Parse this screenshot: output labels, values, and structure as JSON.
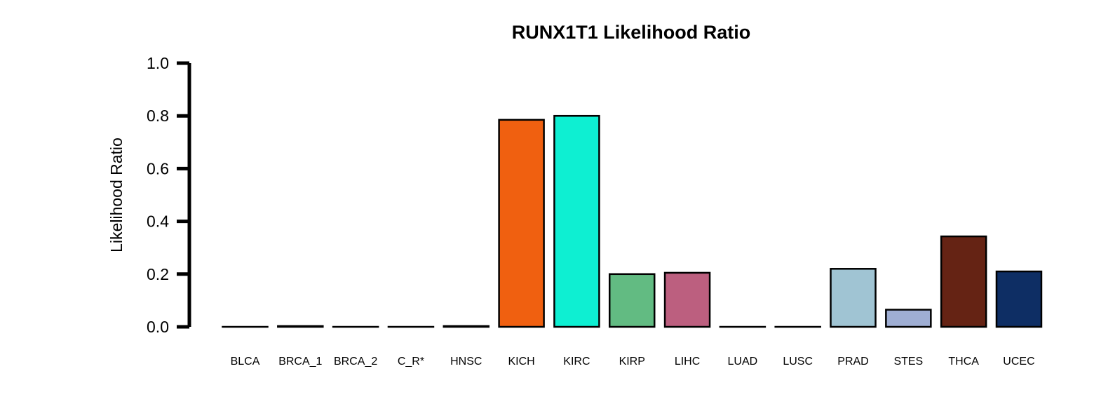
{
  "chart_data": {
    "type": "bar",
    "title": "RUNX1T1 Likelihood Ratio",
    "xlabel": "",
    "ylabel": "Likelihood Ratio",
    "ylim": [
      0,
      1
    ],
    "yticks": [
      "0.0",
      "0.2",
      "0.4",
      "0.6",
      "0.8",
      "1.0"
    ],
    "grid": false,
    "categories": [
      "BLCA",
      "BRCA_1",
      "BRCA_2",
      "C_R*",
      "HNSC",
      "KICH",
      "KIRC",
      "KIRP",
      "LIHC",
      "LUAD",
      "LUSC",
      "PRAD",
      "STES",
      "THCA",
      "UCEC"
    ],
    "values": [
      0.0,
      0.003,
      0.0,
      0.0,
      0.003,
      0.785,
      0.8,
      0.2,
      0.205,
      0.0,
      0.0,
      0.22,
      0.065,
      0.343,
      0.21
    ],
    "colors": [
      "#E41A1C",
      "#FF7F00",
      "#FFB6C1",
      "#4DAF4A",
      "#984EA3",
      "#F06010",
      "#0EEFD2",
      "#62BB82",
      "#BC5F7F",
      "#A6761D",
      "#666666",
      "#A0C4D3",
      "#9FAED3",
      "#652314",
      "#0E2E64"
    ]
  }
}
